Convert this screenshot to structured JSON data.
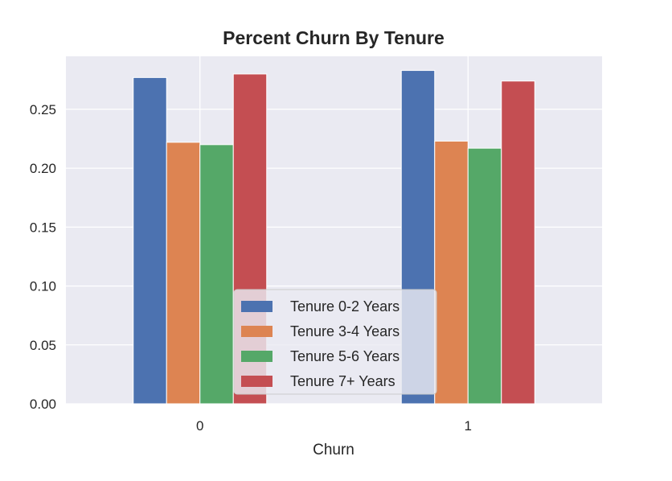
{
  "chart_data": {
    "type": "bar",
    "title": "Percent Churn By Tenure",
    "xlabel": "Churn",
    "ylabel": "",
    "categories": [
      "0",
      "1"
    ],
    "series": [
      {
        "name": "Tenure 0-2 Years",
        "values": [
          0.277,
          0.283
        ],
        "color": "#4c72b0"
      },
      {
        "name": "Tenure 3-4 Years",
        "values": [
          0.222,
          0.223
        ],
        "color": "#dd8452"
      },
      {
        "name": "Tenure 5-6 Years",
        "values": [
          0.22,
          0.217
        ],
        "color": "#55a868"
      },
      {
        "name": "Tenure 7+ Years",
        "values": [
          0.28,
          0.274
        ],
        "color": "#c44e52"
      }
    ],
    "ylim": [
      0,
      0.295
    ],
    "yticks": [
      "0.00",
      "0.05",
      "0.10",
      "0.15",
      "0.20",
      "0.25"
    ],
    "ytick_values": [
      0,
      0.05,
      0.1,
      0.15,
      0.2,
      0.25
    ],
    "grid": true,
    "legend_position": "lower-center",
    "background_color": "#eaeaf2"
  }
}
